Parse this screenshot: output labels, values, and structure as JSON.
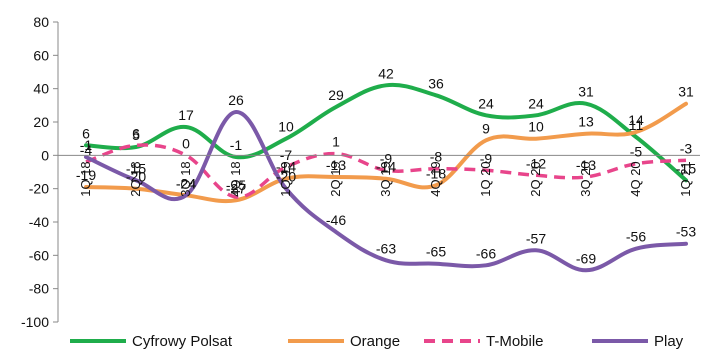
{
  "chart_data": {
    "type": "line",
    "title": "",
    "xlabel": "",
    "ylabel": "",
    "ylim": [
      -100,
      80
    ],
    "yticks": [
      80,
      60,
      40,
      20,
      0,
      -20,
      -40,
      -60,
      -80,
      -100
    ],
    "grid": false,
    "legend_position": "bottom",
    "smooth": true,
    "categories": [
      "1Q 18",
      "2Q 18",
      "3Q 18",
      "4Q 18",
      "1Q 19",
      "2Q 19",
      "3Q 19",
      "4Q 19",
      "1Q 20",
      "2Q 20",
      "3Q 20",
      "4Q 20",
      "1Q 21"
    ],
    "series": [
      {
        "name": "Cyfrowy Polsat",
        "color": "#1fad4b",
        "dash": "solid",
        "values": [
          6,
          5,
          17,
          -1,
          10,
          29,
          42,
          36,
          24,
          24,
          31,
          11,
          -15
        ]
      },
      {
        "name": "Orange",
        "color": "#f29b4c",
        "dash": "solid",
        "values": [
          -19,
          -20,
          -24,
          -27,
          -14,
          -13,
          -14,
          -18,
          9,
          10,
          13,
          14,
          31
        ]
      },
      {
        "name": "T-Mobile",
        "color": "#e8458b",
        "dash": "dashed",
        "values": [
          -4,
          6,
          0,
          -25,
          -7,
          1,
          -9,
          -8,
          -9,
          -12,
          -13,
          -5,
          -3
        ]
      },
      {
        "name": "Play",
        "color": "#7b59a8",
        "dash": "solid",
        "values": [
          -1,
          -15,
          -24,
          26,
          -20,
          -46,
          -63,
          -65,
          -66,
          -57,
          -69,
          -56,
          -53
        ]
      }
    ]
  }
}
